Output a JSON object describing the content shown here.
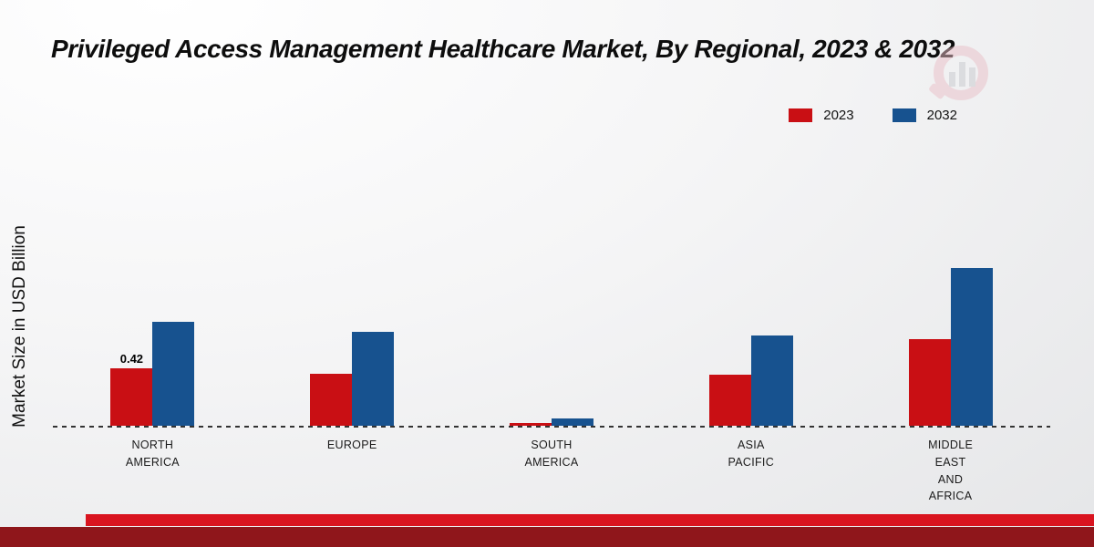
{
  "chart_data": {
    "type": "bar",
    "title": "Privileged Access Management Healthcare Market, By Regional, 2023 & 2032",
    "ylabel": "Market Size in USD Billion",
    "xlabel": "",
    "units": "USD Billion",
    "categories": [
      "NORTH AMERICA",
      "EUROPE",
      "SOUTH AMERICA",
      "ASIA PACIFIC",
      "MIDDLE EAST AND AFRICA"
    ],
    "category_lines": [
      [
        "NORTH",
        "AMERICA"
      ],
      [
        "EUROPE"
      ],
      [
        "SOUTH",
        "AMERICA"
      ],
      [
        "ASIA",
        "PACIFIC"
      ],
      [
        "MIDDLE",
        "EAST",
        "AND",
        "AFRICA"
      ]
    ],
    "series": [
      {
        "name": "2023",
        "color": "#c90f14",
        "values": [
          0.42,
          0.38,
          0.02,
          0.37,
          0.63
        ],
        "value_labels": [
          "0.42",
          "",
          "",
          "",
          ""
        ]
      },
      {
        "name": "2032",
        "color": "#17528f",
        "values": [
          0.76,
          0.69,
          0.05,
          0.66,
          1.15
        ],
        "value_labels": [
          "",
          "",
          "",
          "",
          ""
        ]
      }
    ],
    "ylim": [
      0,
      2.3
    ],
    "grid": false,
    "legend_position": "top-right",
    "baseline_style": "dashed"
  },
  "colors": {
    "bar_2023": "#c90f14",
    "bar_2032": "#17528f",
    "footer_bar_top": "#d9141f",
    "footer_bar_bottom": "#8f161b",
    "background_start": "#ffffff",
    "background_end": "#e3e4e6"
  }
}
